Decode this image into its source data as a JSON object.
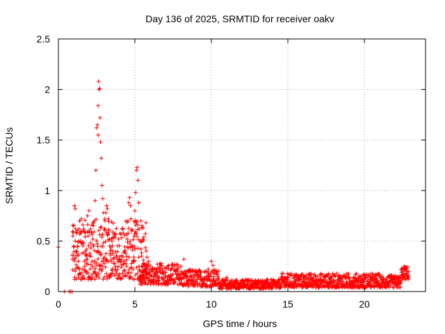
{
  "chart_data": {
    "type": "scatter",
    "title": "Day 136 of 2025, SRMTID for receiver oakv",
    "xlabel": "GPS time / hours",
    "ylabel": "SRMTID / TECUs",
    "xlim": [
      0,
      24
    ],
    "ylim": [
      0,
      2.5
    ],
    "xticks": [
      0,
      5,
      10,
      15,
      20
    ],
    "xtick_labels": [
      "0",
      "5",
      "10",
      "15",
      "20"
    ],
    "yticks": [
      0,
      0.5,
      1,
      1.5,
      2,
      2.5
    ],
    "ytick_labels": [
      "0",
      "0.5",
      "1",
      "1.5",
      "2",
      "2.5"
    ],
    "grid": true,
    "marker": "plus",
    "series": [
      {
        "name": "SRMTID",
        "color": "#ff0000",
        "points": [
          [
            0.0,
            0.44
          ],
          [
            0.4,
            0.0
          ],
          [
            0.7,
            0.0
          ],
          [
            0.8,
            0.0
          ],
          [
            0.9,
            0.0
          ],
          [
            0.9,
            0.36
          ],
          [
            0.95,
            0.55
          ],
          [
            1.0,
            0.65
          ],
          [
            1.05,
            0.85
          ],
          [
            1.1,
            0.82
          ],
          [
            1.1,
            0.5
          ],
          [
            1.15,
            0.4
          ],
          [
            1.2,
            0.58
          ],
          [
            1.25,
            0.45
          ],
          [
            1.3,
            0.3
          ],
          [
            1.35,
            0.62
          ],
          [
            1.4,
            0.7
          ],
          [
            1.45,
            0.5
          ],
          [
            1.5,
            0.72
          ],
          [
            1.55,
            0.38
          ],
          [
            1.6,
            0.66
          ],
          [
            1.65,
            0.48
          ],
          [
            1.7,
            0.3
          ],
          [
            1.75,
            0.58
          ],
          [
            1.8,
            0.2
          ],
          [
            1.85,
            0.42
          ],
          [
            1.9,
            0.75
          ],
          [
            1.95,
            0.55
          ],
          [
            2.0,
            0.8
          ],
          [
            2.05,
            0.38
          ],
          [
            2.1,
            0.62
          ],
          [
            2.15,
            0.12
          ],
          [
            2.2,
            0.3
          ],
          [
            2.25,
            0.52
          ],
          [
            2.3,
            0.45
          ],
          [
            2.35,
            0.7
          ],
          [
            2.4,
            0.9
          ],
          [
            2.45,
            1.2
          ],
          [
            2.5,
            1.62
          ],
          [
            2.55,
            1.65
          ],
          [
            2.6,
            1.55
          ],
          [
            2.6,
            1.84
          ],
          [
            2.62,
            2.08
          ],
          [
            2.65,
            2.0
          ],
          [
            2.7,
            2.01
          ],
          [
            2.72,
            1.72
          ],
          [
            2.75,
            1.48
          ],
          [
            2.8,
            1.32
          ],
          [
            2.85,
            1.05
          ],
          [
            2.9,
            0.92
          ],
          [
            2.95,
            0.78
          ],
          [
            3.0,
            0.62
          ],
          [
            3.05,
            0.7
          ],
          [
            3.1,
            0.78
          ],
          [
            3.15,
            0.85
          ],
          [
            3.2,
            0.82
          ],
          [
            3.25,
            0.72
          ],
          [
            3.3,
            0.6
          ],
          [
            3.35,
            0.45
          ],
          [
            3.4,
            0.36
          ],
          [
            3.45,
            0.3
          ],
          [
            3.5,
            0.5
          ],
          [
            3.55,
            0.4
          ],
          [
            3.6,
            0.28
          ],
          [
            3.7,
            0.22
          ],
          [
            3.8,
            0.18
          ],
          [
            3.9,
            0.25
          ],
          [
            4.0,
            0.32
          ],
          [
            4.1,
            0.24
          ],
          [
            4.2,
            0.18
          ],
          [
            4.3,
            0.3
          ],
          [
            4.4,
            0.38
          ],
          [
            4.5,
            0.52
          ],
          [
            4.55,
            0.7
          ],
          [
            4.6,
            0.88
          ],
          [
            4.65,
            0.93
          ],
          [
            4.7,
            0.85
          ],
          [
            4.75,
            0.72
          ],
          [
            4.8,
            0.6
          ],
          [
            4.85,
            0.45
          ],
          [
            4.9,
            0.3
          ],
          [
            4.95,
            0.55
          ],
          [
            5.0,
            0.8
          ],
          [
            5.05,
            0.98
          ],
          [
            5.1,
            1.2
          ],
          [
            5.15,
            1.23
          ],
          [
            5.2,
            1.1
          ],
          [
            5.25,
            0.88
          ],
          [
            5.3,
            0.62
          ],
          [
            5.35,
            0.5
          ],
          [
            5.4,
            0.42
          ],
          [
            5.45,
            0.35
          ],
          [
            5.5,
            0.5
          ],
          [
            5.55,
            0.28
          ],
          [
            5.6,
            0.2
          ],
          [
            5.7,
            0.22
          ],
          [
            5.8,
            0.18
          ],
          [
            5.9,
            0.3
          ],
          [
            6.0,
            0.15
          ],
          [
            6.2,
            0.12
          ],
          [
            6.4,
            0.2
          ],
          [
            6.6,
            0.14
          ],
          [
            6.8,
            0.22
          ],
          [
            7.0,
            0.15
          ],
          [
            7.2,
            0.1
          ],
          [
            7.4,
            0.16
          ],
          [
            7.6,
            0.12
          ],
          [
            7.8,
            0.2
          ],
          [
            8.0,
            0.25
          ],
          [
            8.2,
            0.32
          ],
          [
            8.4,
            0.18
          ],
          [
            8.6,
            0.12
          ],
          [
            8.8,
            0.08
          ],
          [
            9.0,
            0.1
          ],
          [
            9.2,
            0.08
          ],
          [
            9.4,
            0.12
          ],
          [
            9.6,
            0.2
          ],
          [
            9.8,
            0.22
          ],
          [
            10.0,
            0.3
          ],
          [
            10.1,
            0.26
          ],
          [
            10.2,
            0.18
          ],
          [
            10.4,
            0.12
          ],
          [
            10.6,
            0.08
          ],
          [
            10.8,
            0.1
          ],
          [
            11.0,
            0.14
          ],
          [
            11.2,
            0.08
          ],
          [
            11.4,
            0.06
          ],
          [
            11.6,
            0.1
          ],
          [
            11.8,
            0.08
          ],
          [
            12.0,
            0.06
          ],
          [
            12.2,
            0.1
          ],
          [
            12.4,
            0.07
          ],
          [
            12.6,
            0.06
          ],
          [
            12.8,
            0.08
          ],
          [
            13.0,
            0.05
          ],
          [
            13.2,
            0.07
          ],
          [
            13.4,
            0.09
          ],
          [
            13.6,
            0.08
          ],
          [
            13.8,
            0.06
          ],
          [
            14.0,
            0.1
          ],
          [
            14.2,
            0.08
          ],
          [
            14.4,
            0.07
          ],
          [
            14.6,
            0.09
          ],
          [
            14.8,
            0.12
          ],
          [
            15.0,
            0.14
          ],
          [
            15.2,
            0.1
          ],
          [
            15.4,
            0.08
          ],
          [
            15.6,
            0.16
          ],
          [
            15.8,
            0.12
          ],
          [
            16.0,
            0.1
          ],
          [
            16.2,
            0.14
          ],
          [
            16.4,
            0.09
          ],
          [
            16.6,
            0.11
          ],
          [
            16.8,
            0.15
          ],
          [
            17.0,
            0.12
          ],
          [
            17.2,
            0.08
          ],
          [
            17.4,
            0.16
          ],
          [
            17.6,
            0.1
          ],
          [
            17.8,
            0.14
          ],
          [
            18.0,
            0.11
          ],
          [
            18.2,
            0.09
          ],
          [
            18.4,
            0.13
          ],
          [
            18.6,
            0.07
          ],
          [
            18.8,
            0.05
          ],
          [
            19.0,
            0.04
          ],
          [
            19.2,
            0.08
          ],
          [
            19.4,
            0.1
          ],
          [
            19.6,
            0.12
          ],
          [
            19.8,
            0.09
          ],
          [
            20.0,
            0.13
          ],
          [
            20.2,
            0.08
          ],
          [
            20.4,
            0.1
          ],
          [
            20.6,
            0.12
          ],
          [
            20.8,
            0.06
          ],
          [
            21.0,
            0.09
          ],
          [
            21.2,
            0.07
          ],
          [
            21.4,
            0.12
          ],
          [
            21.6,
            0.15
          ],
          [
            21.8,
            0.1
          ],
          [
            22.0,
            0.12
          ],
          [
            22.2,
            0.08
          ],
          [
            22.4,
            0.15
          ],
          [
            22.5,
            0.2
          ],
          [
            22.6,
            0.22
          ],
          [
            22.7,
            0.24
          ],
          [
            22.8,
            0.2
          ],
          [
            22.8,
            0.16
          ]
        ],
        "dense_bands": [
          {
            "x_start": 0.9,
            "x_end": 5.8,
            "y_min": 0.12,
            "y_max": 0.72
          },
          {
            "x_start": 5.3,
            "x_end": 8.0,
            "y_min": 0.07,
            "y_max": 0.28
          },
          {
            "x_start": 8.0,
            "x_end": 10.5,
            "y_min": 0.05,
            "y_max": 0.22
          },
          {
            "x_start": 10.5,
            "x_end": 14.5,
            "y_min": 0.03,
            "y_max": 0.12
          },
          {
            "x_start": 14.5,
            "x_end": 21.0,
            "y_min": 0.04,
            "y_max": 0.18
          },
          {
            "x_start": 21.0,
            "x_end": 22.4,
            "y_min": 0.04,
            "y_max": 0.16
          },
          {
            "x_start": 22.4,
            "x_end": 22.9,
            "y_min": 0.12,
            "y_max": 0.25
          }
        ]
      }
    ]
  }
}
